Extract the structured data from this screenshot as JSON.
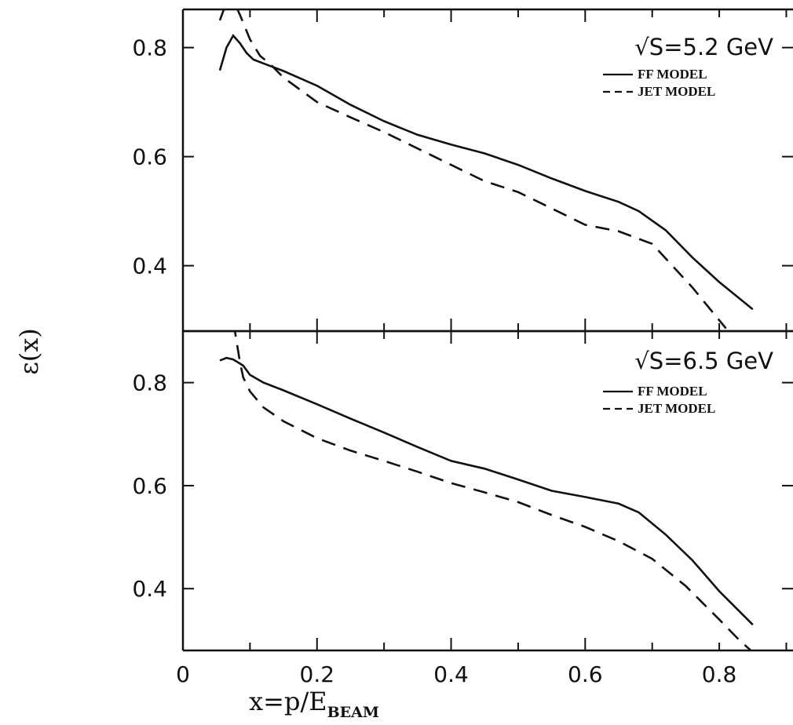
{
  "chart_data": [
    {
      "type": "line",
      "panel": "top",
      "energy_label": "√S=5.2 GeV",
      "xlim": [
        0,
        0.91
      ],
      "ylim": [
        0.28,
        0.87
      ],
      "x_ticks": [
        0,
        0.2,
        0.4,
        0.6,
        0.8
      ],
      "y_ticks": [
        0.4,
        0.6,
        0.8
      ],
      "y_tick_labels": [
        "0.4",
        "0.6",
        "0.8"
      ],
      "colors": {
        "line": "#111111"
      },
      "series": [
        {
          "name": "FF MODEL",
          "style": "solid",
          "x": [
            0.055,
            0.065,
            0.075,
            0.085,
            0.095,
            0.105,
            0.12,
            0.15,
            0.2,
            0.25,
            0.3,
            0.35,
            0.4,
            0.45,
            0.5,
            0.55,
            0.6,
            0.65,
            0.68,
            0.72,
            0.76,
            0.8,
            0.85
          ],
          "y": [
            0.758,
            0.8,
            0.822,
            0.808,
            0.79,
            0.778,
            0.771,
            0.757,
            0.73,
            0.695,
            0.665,
            0.64,
            0.622,
            0.606,
            0.585,
            0.56,
            0.537,
            0.517,
            0.5,
            0.465,
            0.415,
            0.37,
            0.32
          ]
        },
        {
          "name": "JET MODEL",
          "style": "dashed",
          "x": [
            0.055,
            0.07,
            0.085,
            0.1,
            0.115,
            0.13,
            0.15,
            0.2,
            0.25,
            0.3,
            0.35,
            0.4,
            0.45,
            0.5,
            0.55,
            0.6,
            0.65,
            0.7,
            0.73,
            0.76,
            0.79,
            0.81
          ],
          "y": [
            0.85,
            0.9,
            0.86,
            0.815,
            0.785,
            0.77,
            0.745,
            0.7,
            0.672,
            0.645,
            0.615,
            0.585,
            0.555,
            0.535,
            0.505,
            0.475,
            0.463,
            0.44,
            0.4,
            0.36,
            0.315,
            0.285
          ]
        }
      ]
    },
    {
      "type": "line",
      "panel": "bottom",
      "energy_label": "√S=6.5 GeV",
      "xlim": [
        0,
        0.91
      ],
      "ylim": [
        0.28,
        0.9
      ],
      "x_ticks": [
        0,
        0.2,
        0.4,
        0.6,
        0.8
      ],
      "x_tick_labels": [
        "0",
        "0.2",
        "0.4",
        "0.6",
        "0.8"
      ],
      "y_ticks": [
        0.4,
        0.6,
        0.8
      ],
      "y_tick_labels": [
        "0.4",
        "0.6",
        "0.8"
      ],
      "colors": {
        "line": "#111111"
      },
      "series": [
        {
          "name": "FF MODEL",
          "style": "solid",
          "x": [
            0.055,
            0.065,
            0.075,
            0.085,
            0.09,
            0.1,
            0.12,
            0.15,
            0.2,
            0.25,
            0.3,
            0.35,
            0.4,
            0.45,
            0.5,
            0.55,
            0.6,
            0.65,
            0.68,
            0.72,
            0.76,
            0.8,
            0.85
          ],
          "y": [
            0.843,
            0.848,
            0.845,
            0.837,
            0.833,
            0.815,
            0.8,
            0.785,
            0.758,
            0.73,
            0.703,
            0.675,
            0.648,
            0.633,
            0.612,
            0.59,
            0.578,
            0.565,
            0.548,
            0.505,
            0.455,
            0.395,
            0.33
          ]
        },
        {
          "name": "JET MODEL",
          "style": "dashed",
          "x": [
            0.07,
            0.075,
            0.08,
            0.085,
            0.09,
            0.1,
            0.12,
            0.15,
            0.2,
            0.25,
            0.3,
            0.35,
            0.4,
            0.45,
            0.5,
            0.55,
            0.6,
            0.65,
            0.7,
            0.75,
            0.8,
            0.83,
            0.86
          ],
          "y": [
            0.96,
            0.92,
            0.88,
            0.84,
            0.81,
            0.783,
            0.752,
            0.725,
            0.692,
            0.668,
            0.648,
            0.627,
            0.605,
            0.587,
            0.568,
            0.543,
            0.52,
            0.492,
            0.458,
            0.405,
            0.34,
            0.3,
            0.265
          ]
        }
      ]
    }
  ],
  "axes": {
    "xlabel_main": "x=p/E",
    "xlabel_sub": "BEAM",
    "ylabel": "ε(x)"
  }
}
